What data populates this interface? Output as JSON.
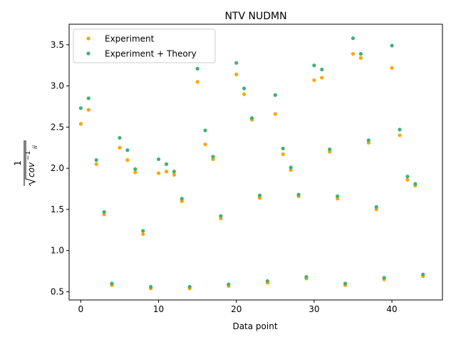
{
  "chart_data": {
    "type": "scatter",
    "title": "NTV NUDMN",
    "xlabel": "Data point",
    "ylabel_numerator": "1",
    "ylabel_radicand": "cov",
    "ylabel_exponent": "−1",
    "ylabel_subscript": "ii",
    "xlim": [
      -1.5,
      46.5
    ],
    "ylim": [
      0.4,
      3.75
    ],
    "x_ticks": [
      0,
      10,
      20,
      30,
      40
    ],
    "y_ticks": [
      0.5,
      1.0,
      1.5,
      2.0,
      2.5,
      3.0,
      3.5
    ],
    "x_tick_labels": [
      "0",
      "10",
      "20",
      "30",
      "40"
    ],
    "y_tick_labels": [
      "0.5",
      "1.0",
      "1.5",
      "2.0",
      "2.5",
      "3.0",
      "3.5"
    ],
    "grid": false,
    "legend_position": "top-left",
    "x": [
      0,
      1,
      2,
      3,
      4,
      5,
      6,
      7,
      8,
      9,
      10,
      11,
      12,
      13,
      14,
      15,
      16,
      17,
      18,
      19,
      20,
      21,
      22,
      23,
      24,
      25,
      26,
      27,
      28,
      29,
      30,
      31,
      32,
      33,
      34,
      35,
      36,
      37,
      38,
      39,
      40,
      41,
      42,
      43,
      44
    ],
    "series": [
      {
        "name": "Experiment",
        "color": "#ffa500",
        "values": [
          2.54,
          2.71,
          2.05,
          1.44,
          0.58,
          2.25,
          2.1,
          1.95,
          1.2,
          0.54,
          1.94,
          1.96,
          1.92,
          1.6,
          0.54,
          3.05,
          2.29,
          2.11,
          1.39,
          0.57,
          3.14,
          2.9,
          2.59,
          1.64,
          0.61,
          2.66,
          2.17,
          1.98,
          1.66,
          0.66,
          3.07,
          3.1,
          2.2,
          1.63,
          0.58,
          3.39,
          3.34,
          2.31,
          1.5,
          0.65,
          3.22,
          2.4,
          1.86,
          1.79,
          0.69
        ]
      },
      {
        "name": "Experiment + Theory",
        "color": "#3cb371",
        "values": [
          2.73,
          2.85,
          2.1,
          1.47,
          0.6,
          2.37,
          2.22,
          1.99,
          1.24,
          0.56,
          2.11,
          2.05,
          1.96,
          1.63,
          0.56,
          3.21,
          2.46,
          2.14,
          1.42,
          0.59,
          3.28,
          2.97,
          2.61,
          1.67,
          0.63,
          2.89,
          2.24,
          2.01,
          1.68,
          0.68,
          3.25,
          3.2,
          2.23,
          1.66,
          0.6,
          3.58,
          3.39,
          2.34,
          1.53,
          0.67,
          3.49,
          2.47,
          1.9,
          1.81,
          0.71
        ]
      }
    ]
  }
}
